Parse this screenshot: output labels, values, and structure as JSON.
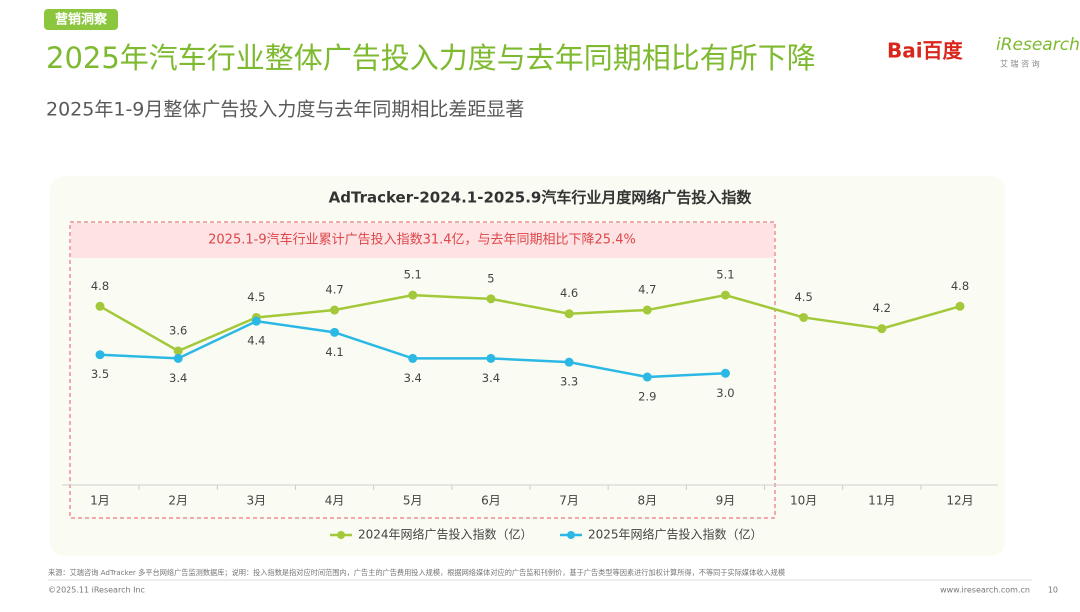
{
  "header": {
    "tag": "营销洞察",
    "title": "2025年汽车行业整体广告投入力度与去年同期相比有所下降",
    "subtitle": "2025年1-9月整体广告投入力度与去年同期相比差距显著",
    "logo_baidu": "Bai百度",
    "logo_iresearch": "iResearch",
    "logo_iresearch_cn": "艾 瑞 咨 询"
  },
  "chart_data": {
    "type": "line",
    "title": "AdTracker-2024.1-2025.9汽车行业月度网络广告投入指数",
    "annotation": "2025.1-9汽车行业累计广告投入指数31.4亿，与去年同期相比下降25.4%",
    "categories": [
      "1月",
      "2月",
      "3月",
      "4月",
      "5月",
      "6月",
      "7月",
      "8月",
      "9月",
      "10月",
      "11月",
      "12月"
    ],
    "series": [
      {
        "name": "2024年网络广告投入指数（亿）",
        "color": "#a3c83a",
        "values": [
          4.8,
          3.6,
          4.5,
          4.7,
          5.1,
          5,
          4.6,
          4.7,
          5.1,
          4.5,
          4.2,
          4.8
        ]
      },
      {
        "name": "2025年网络广告投入指数（亿）",
        "color": "#2cb8e4",
        "values": [
          3.5,
          3.4,
          4.4,
          4.1,
          3.4,
          3.4,
          3.3,
          2.9,
          3.0,
          null,
          null,
          null
        ],
        "value_labels": [
          "3.5",
          "3.4",
          "4.4",
          "4.1",
          "3.4",
          "3.4",
          "3.3",
          "2.9",
          "3.0",
          null,
          null,
          null
        ]
      }
    ],
    "ylim": [
      0,
      6.5
    ],
    "legend": "bottom"
  },
  "footer": {
    "source": "来源：艾瑞咨询 AdTracker 多平台网络广告监测数据库；说明：投入指数是指对应时间范围内，广告主的广告费用投入规模，根据网络媒体对应的广告监和刊例价，基于广告类型等因素进行加权计算所得，不等同于实际媒体收入规模",
    "copyright": "©2025.11 iResearch Inc",
    "url": "www.iresearch.com.cn",
    "page": "10"
  }
}
